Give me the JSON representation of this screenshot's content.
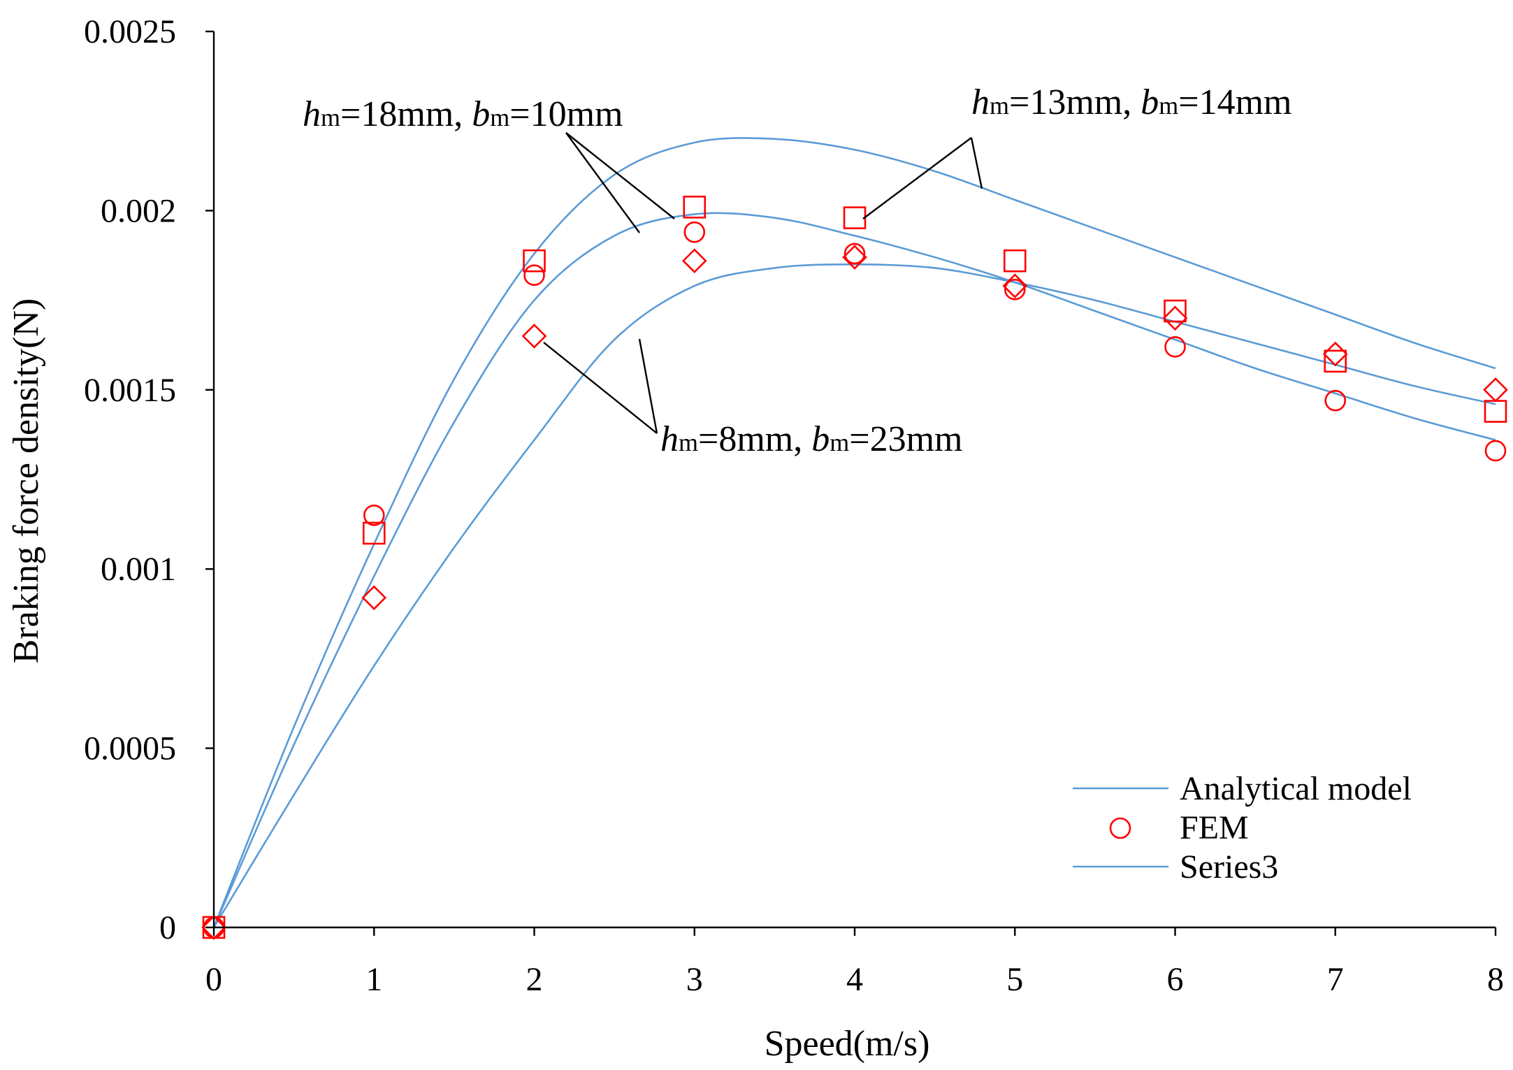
{
  "chart_data": {
    "type": "line",
    "xlabel": "Speed(m/s)",
    "ylabel": "Braking force density(N)",
    "xlim": [
      0,
      8
    ],
    "ylim": [
      0,
      0.0025
    ],
    "x_ticks": [
      "0",
      "1",
      "2",
      "3",
      "4",
      "5",
      "6",
      "7",
      "8"
    ],
    "y_ticks": [
      "0",
      "0.0005",
      "0.001",
      "0.0015",
      "0.002",
      "0.0025"
    ],
    "grid": false,
    "legend_position": "bottom-right",
    "legend": [
      {
        "label": "Analytical model",
        "kind": "line"
      },
      {
        "label": "FEM",
        "kind": "circle"
      },
      {
        "label": "Series3",
        "kind": "line"
      }
    ],
    "analytical": [
      {
        "name": "hm=13mm, bm=14mm",
        "x": [
          0,
          0.5,
          1,
          1.5,
          2,
          2.5,
          3,
          3.5,
          4,
          4.5,
          5,
          5.5,
          6,
          6.5,
          7,
          7.5,
          8
        ],
        "y": [
          0,
          0.00056,
          0.00107,
          0.00153,
          0.00188,
          0.0021,
          0.00219,
          0.0022,
          0.00217,
          0.00211,
          0.00203,
          0.00195,
          0.00187,
          0.00179,
          0.00171,
          0.00163,
          0.00156
        ]
      },
      {
        "name": "hm=18mm, bm=10mm",
        "x": [
          0,
          0.5,
          1,
          1.5,
          2,
          2.5,
          3,
          3.5,
          4,
          4.5,
          5,
          5.5,
          6,
          6.5,
          7,
          7.5,
          8
        ],
        "y": [
          0,
          0.00051,
          0.00098,
          0.00141,
          0.00175,
          0.00193,
          0.00199,
          0.00198,
          0.00193,
          0.00187,
          0.0018,
          0.00172,
          0.00164,
          0.00156,
          0.00149,
          0.00142,
          0.00136
        ]
      },
      {
        "name": "hm=8mm, bm=23mm",
        "x": [
          0,
          0.5,
          1,
          1.5,
          2,
          2.5,
          3,
          3.5,
          4,
          4.5,
          5,
          5.5,
          6,
          6.5,
          7,
          7.5,
          8
        ],
        "y": [
          0,
          0.00037,
          0.00073,
          0.00106,
          0.00136,
          0.00164,
          0.00179,
          0.00184,
          0.00185,
          0.00184,
          0.0018,
          0.00175,
          0.00169,
          0.00163,
          0.00157,
          0.00151,
          0.00146
        ]
      }
    ],
    "fem": [
      {
        "name": "hm=13mm, bm=14mm",
        "marker": "square",
        "x": [
          0,
          1,
          2,
          3,
          4,
          5,
          6,
          7,
          8
        ],
        "y": [
          0,
          0.0011,
          0.00186,
          0.00201,
          0.00198,
          0.00186,
          0.00172,
          0.00158,
          0.00144
        ]
      },
      {
        "name": "hm=18mm, bm=10mm",
        "marker": "circle",
        "x": [
          0,
          1,
          2,
          3,
          4,
          5,
          6,
          7,
          8
        ],
        "y": [
          0,
          0.00115,
          0.00182,
          0.00194,
          0.00188,
          0.00178,
          0.00162,
          0.00147,
          0.00133
        ]
      },
      {
        "name": "hm=8mm, bm=23mm",
        "marker": "diamond",
        "x": [
          0,
          1,
          2,
          3,
          4,
          5,
          6,
          7,
          8
        ],
        "y": [
          0,
          0.00092,
          0.00165,
          0.00186,
          0.00187,
          0.00179,
          0.0017,
          0.0016,
          0.0015
        ]
      }
    ],
    "annotations": [
      {
        "id": "a13",
        "h_sub": "m",
        "h_val": "=13mm, ",
        "b_sub": "m",
        "b_val": "=14mm"
      },
      {
        "id": "a18",
        "h_sub": "m",
        "h_val": "=18mm, ",
        "b_sub": "m",
        "b_val": "=10mm"
      },
      {
        "id": "a8",
        "h_sub": "m",
        "h_val": "=8mm, ",
        "b_sub": "m",
        "b_val": "=23mm"
      }
    ]
  }
}
